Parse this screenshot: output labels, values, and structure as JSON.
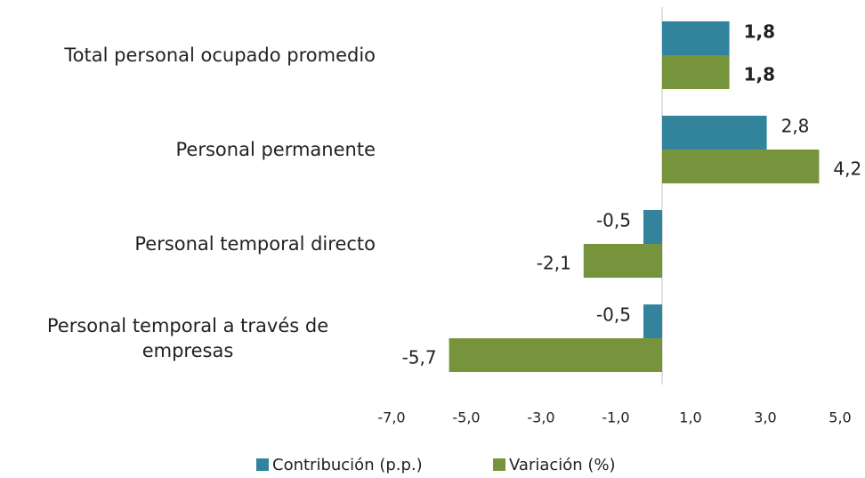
{
  "chart_data": {
    "type": "bar",
    "orientation": "horizontal",
    "categories": [
      "Total personal ocupado promedio",
      "Personal permanente",
      "Personal temporal directo",
      "Personal temporal a través de empresas"
    ],
    "series": [
      {
        "name": "Contribución (p.p.)",
        "color": "#31849b",
        "values": [
          1.8,
          2.8,
          -0.5,
          -0.5
        ],
        "value_labels": [
          "1,8",
          "2,8",
          "-0,5",
          "-0,5"
        ]
      },
      {
        "name": "Variación (%)",
        "color": "#77933c",
        "values": [
          1.8,
          4.2,
          -2.1,
          -5.7
        ],
        "value_labels": [
          "1,8",
          "4,2",
          "-2,1",
          "-5,7"
        ]
      }
    ],
    "xlim": [
      -7,
      5
    ],
    "xticks": [
      {
        "value": -7,
        "label": "-7,0"
      },
      {
        "value": -5,
        "label": "-5,0"
      },
      {
        "value": -3,
        "label": "-3,0"
      },
      {
        "value": -1,
        "label": "-1,0"
      },
      {
        "value": 1,
        "label": "1,0"
      },
      {
        "value": 3,
        "label": "3,0"
      },
      {
        "value": 5,
        "label": "5,0"
      }
    ],
    "legend": "bottom"
  }
}
